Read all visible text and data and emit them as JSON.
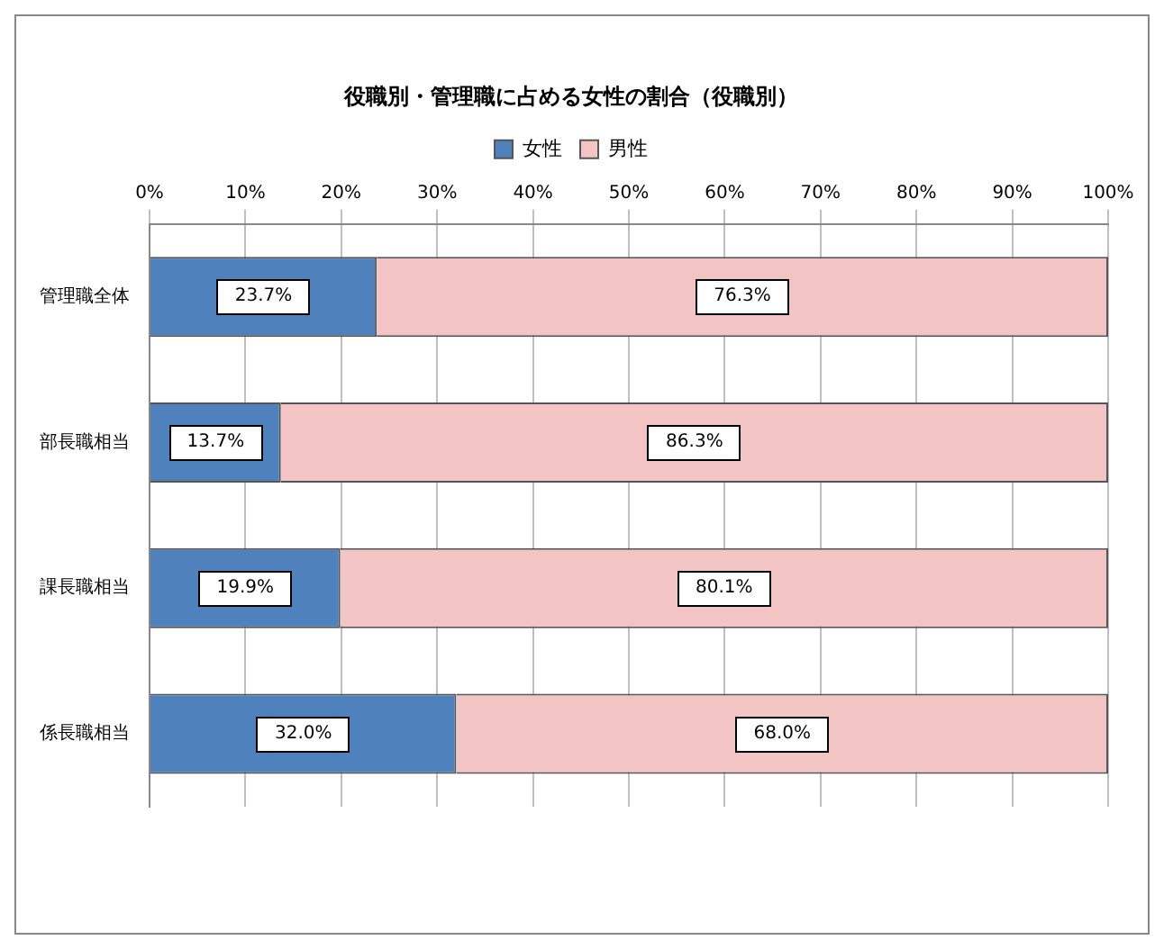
{
  "chart_data": {
    "type": "bar",
    "title": "役職別・管理職に占める女性の割合（役職別）",
    "orientation": "horizontal",
    "stacked": true,
    "categories": [
      "管理職全体",
      "部長職相当",
      "課長職相当",
      "係長職相当"
    ],
    "series": [
      {
        "name": "女性",
        "color": "#4f81bd",
        "values": [
          23.7,
          13.7,
          19.9,
          32.0
        ],
        "value_labels": [
          "23.7%",
          "13.7%",
          "19.9%",
          "32.0%"
        ]
      },
      {
        "name": "男性",
        "color": "#f2c4c4",
        "values": [
          76.3,
          86.3,
          80.1,
          68.0
        ],
        "value_labels": [
          "76.3%",
          "86.3%",
          "80.1%",
          "68.0%"
        ]
      }
    ],
    "xlim": [
      0,
      100
    ],
    "xticks": [
      {
        "value": 0,
        "label": "0%"
      },
      {
        "value": 10,
        "label": "10%"
      },
      {
        "value": 20,
        "label": "20%"
      },
      {
        "value": 30,
        "label": "30%"
      },
      {
        "value": 40,
        "label": "40%"
      },
      {
        "value": 50,
        "label": "50%"
      },
      {
        "value": 60,
        "label": "60%"
      },
      {
        "value": 70,
        "label": "70%"
      },
      {
        "value": 80,
        "label": "80%"
      },
      {
        "value": 90,
        "label": "90%"
      },
      {
        "value": 100,
        "label": "100%"
      }
    ],
    "grid": "x",
    "legend": "top"
  }
}
